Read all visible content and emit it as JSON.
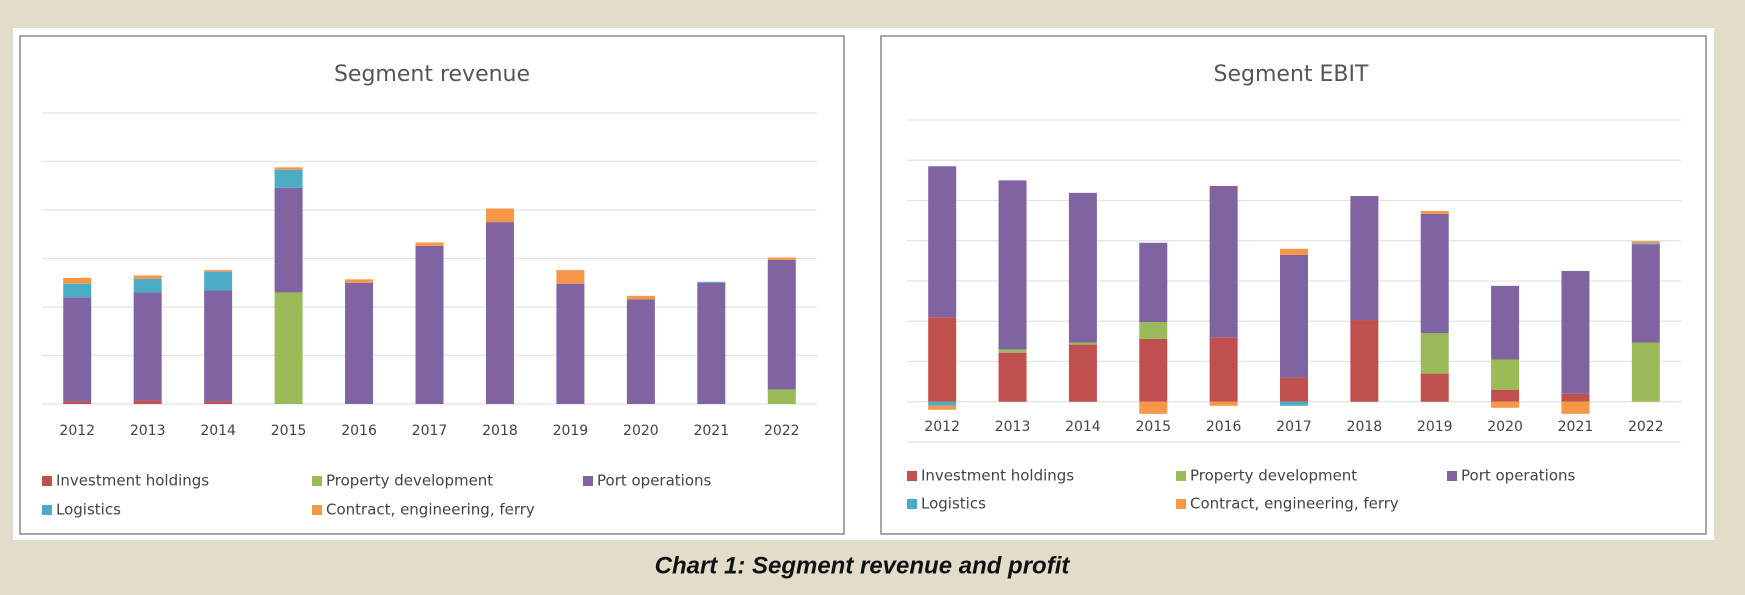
{
  "caption": "Chart 1: Segment revenue and profit",
  "chart_data": [
    {
      "type": "bar",
      "stacked": true,
      "title": "Segment revenue",
      "categories": [
        "2012",
        "2013",
        "2014",
        "2015",
        "2016",
        "2017",
        "2018",
        "2019",
        "2020",
        "2021",
        "2022"
      ],
      "series": [
        {
          "name": "Investment holdings",
          "color": "#c0504d",
          "values": [
            0.05,
            0.07,
            0.05,
            0,
            0,
            0,
            0,
            0,
            0,
            0,
            0
          ]
        },
        {
          "name": "Property development",
          "color": "#9bbb59",
          "values": [
            0,
            0,
            0,
            2.3,
            0,
            0,
            0,
            0,
            0,
            0,
            0.3
          ]
        },
        {
          "name": "Port operations",
          "color": "#8064a2",
          "values": [
            2.15,
            2.23,
            2.29,
            2.16,
            2.5,
            3.26,
            3.75,
            2.48,
            2.16,
            2.5,
            2.67
          ]
        },
        {
          "name": "Logistics",
          "color": "#4bacc6",
          "values": [
            0.28,
            0.28,
            0.39,
            0.37,
            0,
            0,
            0,
            0,
            0,
            0.02,
            0
          ]
        },
        {
          "name": "Contract, engineering, ferry",
          "color": "#f79646",
          "values": [
            0.12,
            0.07,
            0.03,
            0.05,
            0.07,
            0.07,
            0.28,
            0.28,
            0.07,
            0,
            0.05
          ]
        }
      ],
      "ylim": [
        0,
        6
      ],
      "yticks": [
        0,
        1,
        2,
        3,
        4,
        5,
        6
      ],
      "grid": true
    },
    {
      "type": "bar",
      "stacked": true,
      "title": "Segment EBIT",
      "categories": [
        "2012",
        "2013",
        "2014",
        "2015",
        "2016",
        "2017",
        "2018",
        "2019",
        "2020",
        "2021",
        "2022"
      ],
      "series": [
        {
          "name": "Investment holdings",
          "color": "#c0504d",
          "values": [
            2.1,
            1.22,
            1.42,
            1.56,
            1.6,
            0.6,
            2.03,
            0.7,
            0.3,
            0.2,
            0
          ]
        },
        {
          "name": "Property development",
          "color": "#9bbb59",
          "values": [
            0,
            0.08,
            0.05,
            0.42,
            0,
            0,
            0,
            1.0,
            0.75,
            0,
            1.47
          ]
        },
        {
          "name": "Port operations",
          "color": "#8064a2",
          "values": [
            3.75,
            4.2,
            3.72,
            1.97,
            3.76,
            3.05,
            3.08,
            2.97,
            1.83,
            3.05,
            2.44
          ]
        },
        {
          "name": "Logistics",
          "color": "#4bacc6",
          "values": [
            -0.1,
            0,
            0,
            0,
            0,
            -0.1,
            0,
            0,
            0,
            0,
            0.03
          ]
        },
        {
          "name": "Contract, engineering, ferry",
          "color": "#f79646",
          "values": [
            -0.1,
            0,
            0,
            -0.3,
            -0.1,
            0.15,
            0,
            0.07,
            -0.15,
            -0.3,
            0.05
          ]
        }
      ],
      "ylim": [
        -1,
        7
      ],
      "yticks": [
        -1,
        0,
        1,
        2,
        3,
        4,
        5,
        6,
        7
      ],
      "grid": true
    }
  ]
}
